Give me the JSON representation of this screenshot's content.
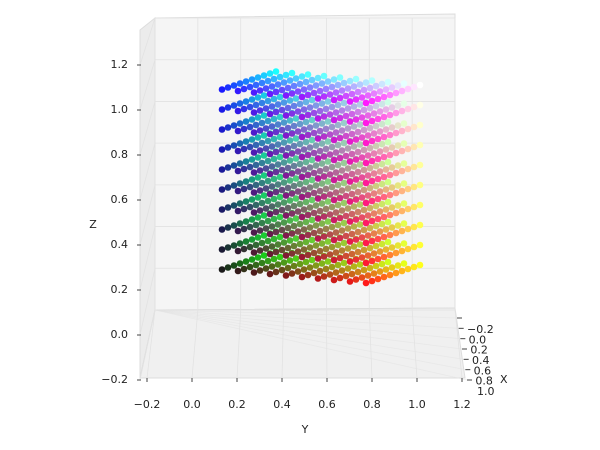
{
  "chart_data": {
    "type": "scatter3d",
    "x_label": "X",
    "y_label": "Y",
    "z_label": "Z",
    "x_levels": [
      0.1,
      0.2,
      0.3,
      0.4,
      0.5,
      0.6,
      0.7,
      0.8,
      0.9,
      1.0
    ],
    "y_levels": [
      0.1,
      0.2,
      0.3,
      0.4,
      0.5,
      0.6,
      0.7,
      0.8,
      0.9,
      1.0
    ],
    "z_levels": [
      0.1,
      0.2,
      0.3,
      0.4,
      0.5,
      0.6,
      0.7,
      0.8,
      0.9,
      1.0
    ],
    "color_channels": {
      "r": "y",
      "g": "x",
      "b": "z"
    },
    "xlim": [
      -0.2,
      1.0
    ],
    "ylim": [
      -0.2,
      1.2
    ],
    "zlim": [
      -0.2,
      1.2
    ],
    "xticks": [
      {
        "value": -0.2,
        "label": "−0.2"
      },
      {
        "value": 0,
        "label": "0.0"
      },
      0.2,
      0.4,
      0.6,
      0.8,
      {
        "value": 1,
        "label": "1.0"
      }
    ],
    "yticks": [
      {
        "value": -0.2,
        "label": "−0.2"
      },
      {
        "value": 0,
        "label": "0.0"
      },
      0.2,
      0.4,
      0.6,
      0.8,
      {
        "value": 1,
        "label": "1.0"
      },
      1.2
    ],
    "zticks": [
      {
        "value": -0.2,
        "label": "−0.2"
      },
      {
        "value": 0,
        "label": "0.0"
      },
      0.2,
      0.4,
      0.6,
      0.8,
      {
        "value": 1,
        "label": "1.0"
      },
      1.2
    ],
    "grid": true
  }
}
